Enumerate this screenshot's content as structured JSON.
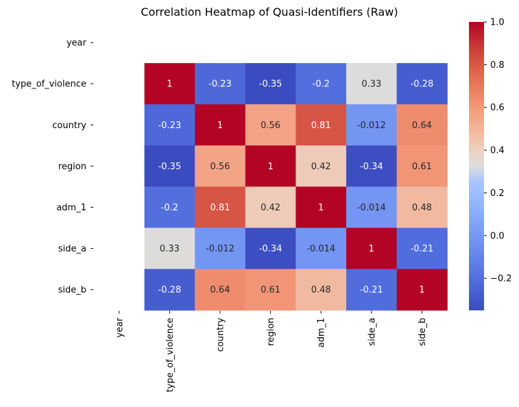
{
  "chart_data": {
    "type": "heatmap",
    "title": "Correlation Heatmap of Quasi-Identifiers (Raw)",
    "xlabel": "",
    "ylabel": "",
    "row_labels": [
      "year",
      "type_of_violence",
      "country",
      "region",
      "adm_1",
      "side_a",
      "side_b"
    ],
    "col_labels": [
      "year",
      "type_of_violence",
      "country",
      "region",
      "adm_1",
      "side_a",
      "side_b"
    ],
    "values": [
      [
        null,
        null,
        null,
        null,
        null,
        null,
        null
      ],
      [
        null,
        1,
        -0.23,
        -0.35,
        -0.2,
        0.33,
        -0.28
      ],
      [
        null,
        -0.23,
        1,
        0.56,
        0.81,
        -0.012,
        0.64
      ],
      [
        null,
        -0.35,
        0.56,
        1,
        0.42,
        -0.34,
        0.61
      ],
      [
        null,
        -0.2,
        0.81,
        0.42,
        1,
        -0.014,
        0.48
      ],
      [
        null,
        0.33,
        -0.012,
        -0.34,
        -0.014,
        1,
        -0.21
      ],
      [
        null,
        -0.28,
        0.64,
        0.61,
        0.48,
        -0.21,
        1
      ]
    ],
    "annotations": [
      [
        "",
        "",
        "",
        "",
        "",
        "",
        ""
      ],
      [
        "",
        "1",
        "-0.23",
        "-0.35",
        "-0.2",
        "0.33",
        "-0.28"
      ],
      [
        "",
        "-0.23",
        "1",
        "0.56",
        "0.81",
        "-0.012",
        "0.64"
      ],
      [
        "",
        "-0.35",
        "0.56",
        "1",
        "0.42",
        "-0.34",
        "0.61"
      ],
      [
        "",
        "-0.2",
        "0.81",
        "0.42",
        "1",
        "-0.014",
        "0.48"
      ],
      [
        "",
        "0.33",
        "-0.012",
        "-0.34",
        "-0.014",
        "1",
        "-0.21"
      ],
      [
        "",
        "-0.28",
        "0.64",
        "0.61",
        "0.48",
        "-0.21",
        "1"
      ]
    ],
    "colormap": "coolwarm",
    "vmin": -0.35,
    "vmax": 1.0,
    "colorbar": {
      "ticks": [
        -0.2,
        0.0,
        0.2,
        0.4,
        0.6,
        0.8,
        1.0
      ],
      "tick_labels": [
        "−0.2",
        "0.0",
        "0.2",
        "0.4",
        "0.6",
        "0.8",
        "1.0"
      ],
      "placement": "right"
    },
    "grid": false
  }
}
